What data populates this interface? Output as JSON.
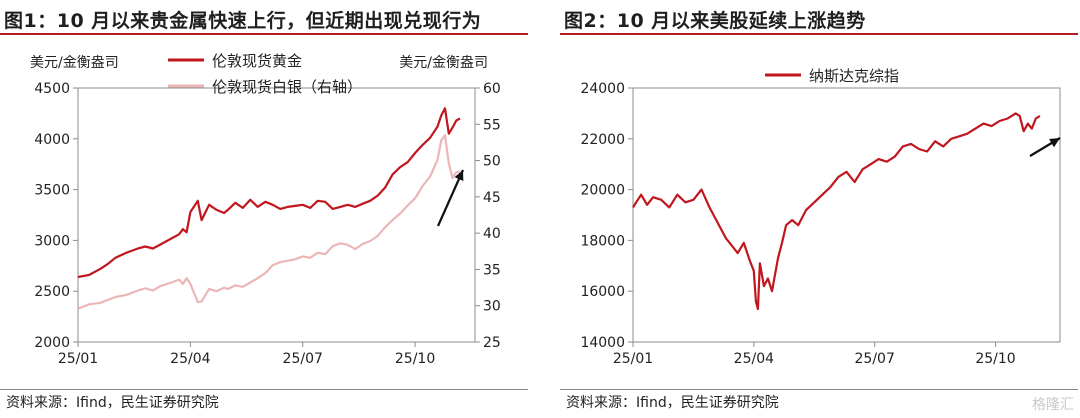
{
  "colors": {
    "gold": "#c0161d",
    "silver": "#ecb6b6",
    "nasdaq": "#c0161d",
    "accent": "#b01c22",
    "arrow": "#111111"
  },
  "left": {
    "title": "图1：10 月以来贵金属快速上行，但近期出现兑现行为",
    "source": "资料来源：Ifind，民生证券研究院"
  },
  "right": {
    "title": "图2：10 月以来美股延续上涨趋势",
    "source": "资料来源：Ifind，民生证券研究院"
  },
  "watermark": "格隆汇",
  "chart_data": [
    {
      "type": "line",
      "title": "图1：10 月以来贵金属快速上行，但近期出现兑现行为",
      "ylabel": "美元/金衡盎司",
      "ylabel_right": "美元/金衡盎司",
      "ylim": [
        2000,
        4500
      ],
      "yticks": [
        "2000",
        "2500",
        "3000",
        "3500",
        "4000",
        "4500"
      ],
      "ylim_right": [
        25,
        60
      ],
      "yticks_right": [
        "25",
        "30",
        "35",
        "40",
        "45",
        "50",
        "55",
        "60"
      ],
      "xlim": [
        0,
        10.6
      ],
      "xticks": [
        {
          "pos": 0,
          "label": "25/01"
        },
        {
          "pos": 3,
          "label": "25/04"
        },
        {
          "pos": 6,
          "label": "25/07"
        },
        {
          "pos": 9,
          "label": "25/10"
        }
      ],
      "legend_position": "top",
      "annotation": "upward-arrow",
      "series": [
        {
          "name": "伦敦现货黄金",
          "axis": "left",
          "x": [
            0,
            0.3,
            0.6,
            0.8,
            1.0,
            1.3,
            1.6,
            1.8,
            2.0,
            2.2,
            2.5,
            2.7,
            2.8,
            2.9,
            3.0,
            3.2,
            3.3,
            3.5,
            3.7,
            3.9,
            4.0,
            4.2,
            4.4,
            4.6,
            4.8,
            5.0,
            5.2,
            5.4,
            5.6,
            5.8,
            6.0,
            6.2,
            6.4,
            6.6,
            6.8,
            7.0,
            7.2,
            7.4,
            7.6,
            7.8,
            8.0,
            8.2,
            8.4,
            8.6,
            8.8,
            9.0,
            9.2,
            9.4,
            9.6,
            9.7,
            9.8,
            9.9,
            10.0,
            10.1,
            10.2
          ],
          "values": [
            2640,
            2660,
            2720,
            2770,
            2830,
            2880,
            2920,
            2940,
            2920,
            2960,
            3020,
            3060,
            3110,
            3080,
            3280,
            3390,
            3200,
            3350,
            3300,
            3270,
            3300,
            3370,
            3320,
            3400,
            3330,
            3380,
            3350,
            3310,
            3330,
            3340,
            3350,
            3320,
            3390,
            3380,
            3310,
            3330,
            3350,
            3330,
            3360,
            3390,
            3440,
            3520,
            3650,
            3720,
            3770,
            3860,
            3940,
            4010,
            4120,
            4230,
            4300,
            4050,
            4110,
            4180,
            4200
          ]
        },
        {
          "name": "伦敦现货白银（右轴）",
          "axis": "right",
          "x": [
            0,
            0.3,
            0.6,
            0.8,
            1.0,
            1.3,
            1.6,
            1.8,
            2.0,
            2.2,
            2.5,
            2.7,
            2.8,
            2.9,
            3.0,
            3.2,
            3.3,
            3.5,
            3.7,
            3.9,
            4.0,
            4.2,
            4.4,
            4.6,
            4.8,
            5.0,
            5.2,
            5.4,
            5.6,
            5.8,
            6.0,
            6.2,
            6.4,
            6.6,
            6.8,
            7.0,
            7.2,
            7.4,
            7.6,
            7.8,
            8.0,
            8.2,
            8.4,
            8.6,
            8.8,
            9.0,
            9.2,
            9.4,
            9.6,
            9.7,
            9.8,
            9.9,
            10.0,
            10.1,
            10.2
          ],
          "values": [
            29.6,
            30.2,
            30.4,
            30.8,
            31.2,
            31.5,
            32.1,
            32.4,
            32.1,
            32.7,
            33.2,
            33.6,
            33.0,
            33.8,
            33.0,
            30.5,
            30.6,
            32.3,
            32.0,
            32.5,
            32.3,
            32.8,
            32.6,
            33.2,
            33.8,
            34.5,
            35.6,
            36.0,
            36.2,
            36.4,
            36.8,
            36.6,
            37.3,
            37.1,
            38.2,
            38.6,
            38.4,
            37.8,
            38.5,
            38.9,
            39.6,
            40.8,
            41.8,
            42.7,
            43.8,
            44.8,
            46.5,
            47.8,
            50.1,
            52.8,
            53.5,
            49.6,
            47.6,
            48.4,
            48.5
          ]
        }
      ]
    },
    {
      "type": "line",
      "title": "图2：10 月以来美股延续上涨趋势",
      "ylim": [
        14000,
        24000
      ],
      "yticks": [
        "14000",
        "16000",
        "18000",
        "20000",
        "22000",
        "24000"
      ],
      "xlim": [
        0,
        10.6
      ],
      "xticks": [
        {
          "pos": 0,
          "label": "25/01"
        },
        {
          "pos": 3,
          "label": "25/04"
        },
        {
          "pos": 6,
          "label": "25/07"
        },
        {
          "pos": 9,
          "label": "25/10"
        }
      ],
      "legend_position": "top",
      "annotation": "upward-arrow",
      "series": [
        {
          "name": "纳斯达克综指",
          "x": [
            0,
            0.2,
            0.35,
            0.5,
            0.7,
            0.9,
            1.1,
            1.3,
            1.5,
            1.7,
            1.9,
            2.1,
            2.3,
            2.45,
            2.6,
            2.75,
            2.9,
            3.0,
            3.05,
            3.1,
            3.15,
            3.25,
            3.35,
            3.45,
            3.6,
            3.7,
            3.8,
            3.95,
            4.1,
            4.3,
            4.5,
            4.7,
            4.9,
            5.1,
            5.3,
            5.5,
            5.7,
            5.9,
            6.1,
            6.3,
            6.5,
            6.7,
            6.9,
            7.1,
            7.3,
            7.5,
            7.7,
            7.9,
            8.1,
            8.3,
            8.5,
            8.7,
            8.9,
            9.1,
            9.3,
            9.5,
            9.6,
            9.7,
            9.8,
            9.9,
            10.0,
            10.1
          ],
          "values": [
            19300,
            19800,
            19400,
            19700,
            19600,
            19300,
            19800,
            19500,
            19600,
            20000,
            19300,
            18700,
            18100,
            17800,
            17500,
            17900,
            17200,
            16800,
            15600,
            15300,
            17100,
            16200,
            16500,
            16000,
            17300,
            17900,
            18600,
            18800,
            18600,
            19200,
            19500,
            19800,
            20100,
            20500,
            20700,
            20300,
            20800,
            21000,
            21200,
            21100,
            21300,
            21700,
            21800,
            21600,
            21500,
            21900,
            21700,
            22000,
            22100,
            22200,
            22400,
            22600,
            22500,
            22700,
            22800,
            23000,
            22900,
            22300,
            22600,
            22400,
            22800,
            22900
          ]
        }
      ]
    }
  ]
}
